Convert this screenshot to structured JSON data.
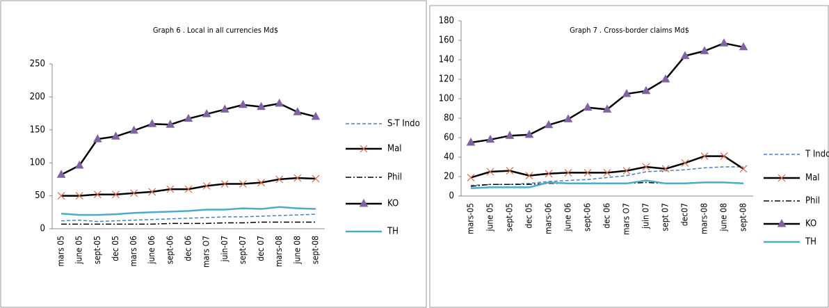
{
  "chart_data": [
    {
      "type": "line",
      "title": "Graph 6 . Local in all currencies Md$",
      "categories": [
        "mars 05",
        "june 05",
        "sept-05",
        "dec 05",
        "mars 06",
        "june 06",
        "sept-06",
        "dec 06",
        "mars O7",
        "juin-07",
        "sept-07",
        "dec 07",
        "mars-08",
        "june 08",
        "sept-08"
      ],
      "ylim": [
        0,
        250
      ],
      "yticks": [
        0,
        50,
        100,
        150,
        200,
        250
      ],
      "series": [
        {
          "name": "S-T Indo",
          "color": "#4a7ebb",
          "dash": "dashed",
          "values": [
            12,
            13,
            11,
            12,
            13,
            14,
            15,
            16,
            17,
            18,
            18,
            19,
            20,
            21,
            22
          ]
        },
        {
          "name": "Mal",
          "color": "#000000",
          "marker": "x",
          "marker_color": "#d9694a",
          "values": [
            50,
            50,
            52,
            52,
            54,
            56,
            60,
            60,
            65,
            68,
            68,
            70,
            75,
            77,
            76
          ]
        },
        {
          "name": "Phil",
          "color": "#000000",
          "dash": "dashdot",
          "values": [
            7,
            7,
            7,
            7,
            7,
            7,
            8,
            8,
            8,
            9,
            9,
            10,
            10,
            10,
            10
          ]
        },
        {
          "name": "KO",
          "color": "#000000",
          "marker": "triangle",
          "marker_color": "#8064a2",
          "values": [
            82,
            96,
            136,
            140,
            149,
            159,
            158,
            167,
            174,
            181,
            188,
            185,
            190,
            177,
            170
          ]
        },
        {
          "name": "TH",
          "color": "#4bacc6",
          "values": [
            23,
            21,
            21,
            22,
            24,
            25,
            26,
            27,
            29,
            29,
            31,
            30,
            33,
            31,
            30
          ]
        }
      ]
    },
    {
      "type": "line",
      "title": "Graph 7 . Cross-border claims Md$",
      "categories": [
        "mars-05",
        "june 05",
        "sept-05",
        "dec 05",
        "mars-06",
        "june 06",
        "sept-06",
        "dec 06",
        "mars O7",
        "juin 07",
        "sept 07",
        "dec07",
        "mars-08",
        "june 08",
        "sept-08"
      ],
      "ylim": [
        0,
        180
      ],
      "yticks": [
        0,
        20,
        40,
        60,
        80,
        100,
        120,
        140,
        160,
        180
      ],
      "series": [
        {
          "name": "T Indo",
          "color": "#4a7ebb",
          "dash": "dashed",
          "values": [
            11,
            12,
            12,
            13,
            15,
            16,
            17,
            19,
            21,
            25,
            26,
            27,
            29,
            30,
            30
          ]
        },
        {
          "name": "Mal",
          "color": "#000000",
          "marker": "x",
          "marker_color": "#d9694a",
          "values": [
            19,
            25,
            26,
            21,
            23,
            24,
            24,
            24,
            26,
            30,
            28,
            34,
            41,
            41,
            28
          ]
        },
        {
          "name": "Phil",
          "color": "#000000",
          "dash": "dashdot",
          "values": [
            10,
            12,
            12,
            12,
            13,
            13,
            13,
            13,
            13,
            14,
            13,
            13,
            14,
            14,
            13
          ]
        },
        {
          "name": "KO",
          "color": "#000000",
          "marker": "triangle",
          "marker_color": "#8064a2",
          "values": [
            55,
            58,
            62,
            63,
            73,
            79,
            91,
            89,
            105,
            108,
            120,
            144,
            149,
            157,
            153
          ]
        },
        {
          "name": "TH",
          "color": "#4bacc6",
          "values": [
            8,
            9,
            9,
            9,
            14,
            13,
            13,
            13,
            13,
            16,
            13,
            13,
            14,
            14,
            13
          ]
        }
      ]
    }
  ]
}
